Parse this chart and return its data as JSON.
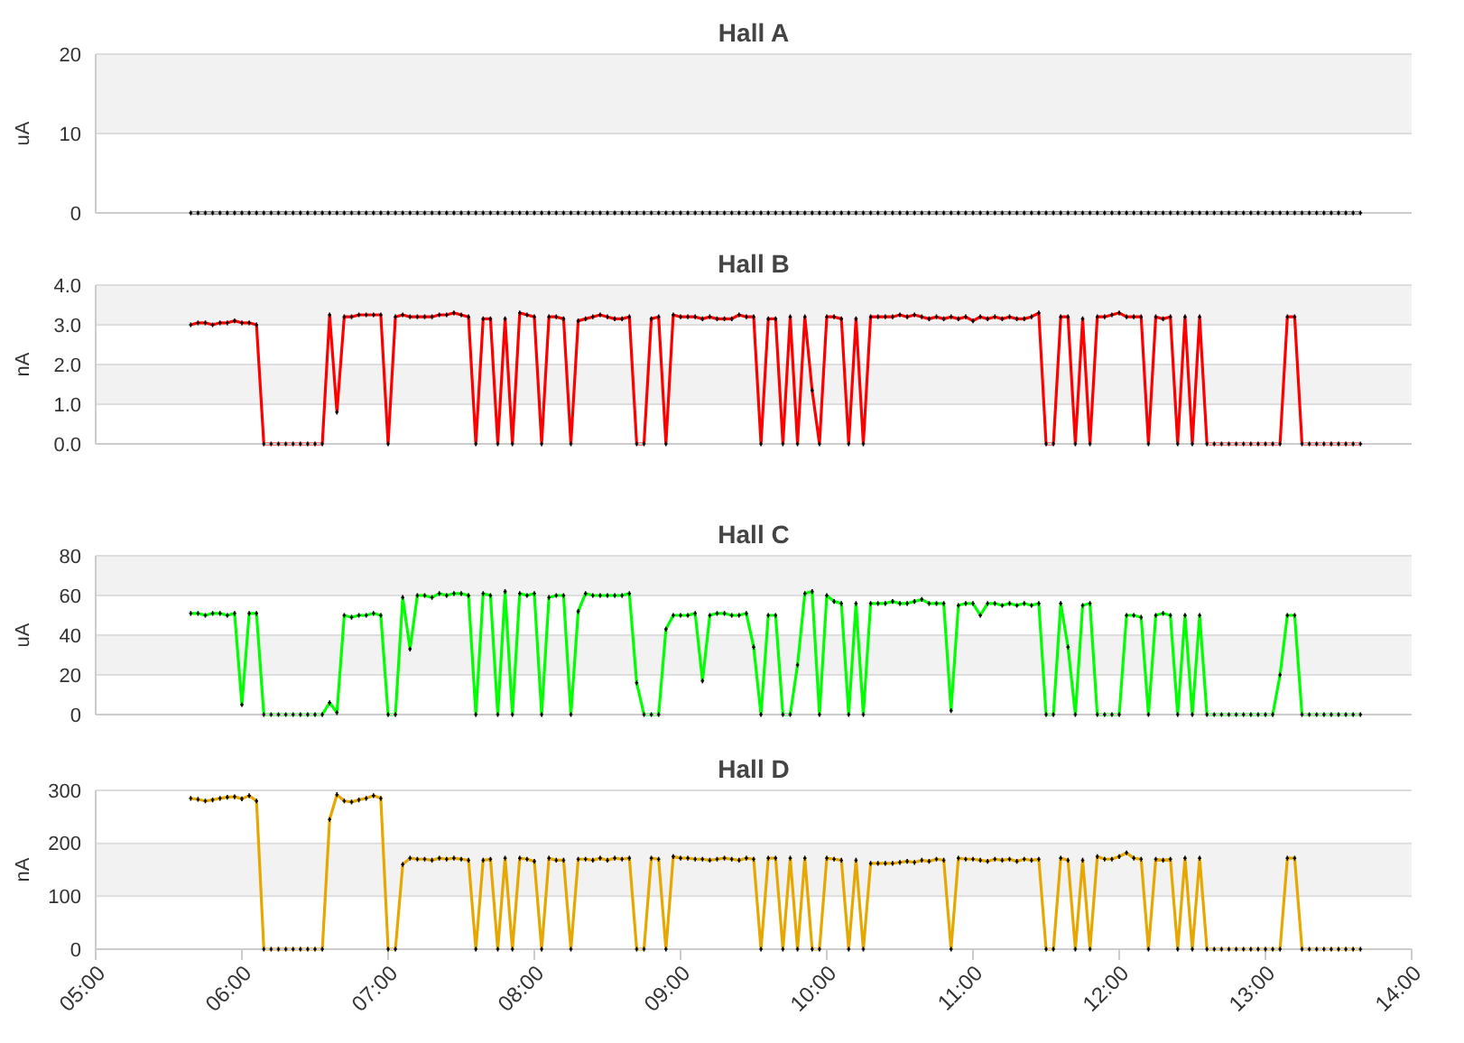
{
  "chart_data": [
    {
      "type": "line",
      "title": "Hall A",
      "ylabel": "uA",
      "xlim": [
        5,
        14
      ],
      "ylim": [
        0,
        20
      ],
      "yticks": [
        0,
        10,
        20
      ],
      "grid": "y",
      "marker": "cross",
      "tick_labels": "y",
      "x": [
        5.65,
        5.7,
        5.75,
        5.8,
        5.85,
        5.9,
        5.95,
        6,
        6.05,
        6.1,
        6.15,
        6.2,
        6.25,
        6.3,
        6.35,
        6.4,
        6.45,
        6.5,
        6.55,
        6.6,
        6.65,
        6.7,
        6.75,
        6.8,
        6.85,
        6.9,
        6.95,
        7,
        7.05,
        7.1,
        7.15,
        7.2,
        7.25,
        7.3,
        7.35,
        7.4,
        7.45,
        7.5,
        7.55,
        7.6,
        7.65,
        7.7,
        7.75,
        7.8,
        7.85,
        7.9,
        7.95,
        8,
        8.05,
        8.1,
        8.15,
        8.2,
        8.25,
        8.3,
        8.35,
        8.4,
        8.45,
        8.5,
        8.55,
        8.6,
        8.65,
        8.7,
        8.75,
        8.8,
        8.85,
        8.9,
        8.95,
        9,
        9.05,
        9.1,
        9.15,
        9.2,
        9.25,
        9.3,
        9.35,
        9.4,
        9.45,
        9.5,
        9.55,
        9.6,
        9.65,
        9.7,
        9.75,
        9.8,
        9.85,
        9.9,
        9.95,
        10,
        10.05,
        10.1,
        10.15,
        10.2,
        10.25,
        10.3,
        10.35,
        10.4,
        10.45,
        10.5,
        10.55,
        10.6,
        10.65,
        10.7,
        10.75,
        10.8,
        10.85,
        10.9,
        10.95,
        11,
        11.05,
        11.1,
        11.15,
        11.2,
        11.25,
        11.3,
        11.35,
        11.4,
        11.45,
        11.5,
        11.55,
        11.6,
        11.65,
        11.7,
        11.75,
        11.8,
        11.85,
        11.9,
        11.95,
        12,
        12.05,
        12.1,
        12.15,
        12.2,
        12.25,
        12.3,
        12.35,
        12.4,
        12.45,
        12.5,
        12.55,
        12.6,
        12.65,
        12.7,
        12.75,
        12.8,
        12.85,
        12.9,
        12.95,
        13,
        13.05,
        13.1,
        13.15,
        13.2,
        13.25,
        13.3,
        13.35,
        13.4,
        13.45,
        13.5,
        13.55,
        13.6,
        13.65
      ],
      "series": [
        {
          "color": "#000000",
          "values": [
            0,
            0,
            0,
            0,
            0,
            0,
            0,
            0,
            0,
            0,
            0,
            0,
            0,
            0,
            0,
            0,
            0,
            0,
            0,
            0,
            0,
            0,
            0,
            0,
            0,
            0,
            0,
            0,
            0,
            0,
            0,
            0,
            0,
            0,
            0,
            0,
            0,
            0,
            0,
            0,
            0,
            0,
            0,
            0,
            0,
            0,
            0,
            0,
            0,
            0,
            0,
            0,
            0,
            0,
            0,
            0,
            0,
            0,
            0,
            0,
            0,
            0,
            0,
            0,
            0,
            0,
            0,
            0,
            0,
            0,
            0,
            0,
            0,
            0,
            0,
            0,
            0,
            0,
            0,
            0,
            0,
            0,
            0,
            0,
            0,
            0,
            0,
            0,
            0,
            0,
            0,
            0,
            0,
            0,
            0,
            0,
            0,
            0,
            0,
            0,
            0,
            0,
            0,
            0,
            0,
            0,
            0,
            0,
            0,
            0,
            0,
            0,
            0,
            0,
            0,
            0,
            0,
            0,
            0,
            0,
            0,
            0,
            0,
            0,
            0,
            0,
            0,
            0,
            0,
            0,
            0,
            0,
            0,
            0,
            0,
            0,
            0,
            0,
            0,
            0,
            0,
            0,
            0,
            0,
            0,
            0,
            0,
            0,
            0,
            0,
            0,
            0,
            0,
            0,
            0,
            0,
            0,
            0,
            0,
            0,
            0
          ]
        }
      ]
    },
    {
      "type": "line",
      "title": "Hall B",
      "ylabel": "nA",
      "xlim": [
        5,
        14
      ],
      "ylim": [
        0,
        4
      ],
      "yticks": [
        {
          "value": 0,
          "label": "0.0"
        },
        {
          "value": 1,
          "label": "1.0"
        },
        {
          "value": 2,
          "label": "2.0"
        },
        {
          "value": 3,
          "label": "3.0"
        },
        {
          "value": 4,
          "label": "4.0"
        }
      ],
      "grid": "y",
      "marker": "cross",
      "tick_labels": "y",
      "x": [
        5.65,
        5.7,
        5.75,
        5.8,
        5.85,
        5.9,
        5.95,
        6,
        6.05,
        6.1,
        6.15,
        6.2,
        6.25,
        6.3,
        6.35,
        6.4,
        6.45,
        6.5,
        6.55,
        6.6,
        6.65,
        6.7,
        6.75,
        6.8,
        6.85,
        6.9,
        6.95,
        7,
        7.05,
        7.1,
        7.15,
        7.2,
        7.25,
        7.3,
        7.35,
        7.4,
        7.45,
        7.5,
        7.55,
        7.6,
        7.65,
        7.7,
        7.75,
        7.8,
        7.85,
        7.9,
        7.95,
        8,
        8.05,
        8.1,
        8.15,
        8.2,
        8.25,
        8.3,
        8.35,
        8.4,
        8.45,
        8.5,
        8.55,
        8.6,
        8.65,
        8.7,
        8.75,
        8.8,
        8.85,
        8.9,
        8.95,
        9,
        9.05,
        9.1,
        9.15,
        9.2,
        9.25,
        9.3,
        9.35,
        9.4,
        9.45,
        9.5,
        9.55,
        9.6,
        9.65,
        9.7,
        9.75,
        9.8,
        9.85,
        9.9,
        9.95,
        10,
        10.05,
        10.1,
        10.15,
        10.2,
        10.25,
        10.3,
        10.35,
        10.4,
        10.45,
        10.5,
        10.55,
        10.6,
        10.65,
        10.7,
        10.75,
        10.8,
        10.85,
        10.9,
        10.95,
        11,
        11.05,
        11.1,
        11.15,
        11.2,
        11.25,
        11.3,
        11.35,
        11.4,
        11.45,
        11.5,
        11.55,
        11.6,
        11.65,
        11.7,
        11.75,
        11.8,
        11.85,
        11.9,
        11.95,
        12,
        12.05,
        12.1,
        12.15,
        12.2,
        12.25,
        12.3,
        12.35,
        12.4,
        12.45,
        12.5,
        12.55,
        12.6,
        12.65,
        12.7,
        12.75,
        12.8,
        12.85,
        12.9,
        12.95,
        13,
        13.05,
        13.1,
        13.15,
        13.2,
        13.25,
        13.3,
        13.35,
        13.4,
        13.45,
        13.5,
        13.55,
        13.6,
        13.65
      ],
      "series": [
        {
          "color": "#ff0000",
          "values": [
            3.0,
            3.05,
            3.05,
            3.0,
            3.05,
            3.05,
            3.1,
            3.05,
            3.05,
            3.0,
            0,
            0,
            0,
            0,
            0,
            0,
            0,
            0,
            0,
            3.25,
            0.8,
            3.2,
            3.2,
            3.25,
            3.25,
            3.25,
            3.25,
            0,
            3.2,
            3.25,
            3.2,
            3.2,
            3.2,
            3.2,
            3.25,
            3.25,
            3.3,
            3.25,
            3.2,
            0,
            3.15,
            3.15,
            0,
            3.15,
            0,
            3.3,
            3.25,
            3.2,
            0,
            3.2,
            3.2,
            3.15,
            0,
            3.1,
            3.15,
            3.2,
            3.25,
            3.2,
            3.15,
            3.15,
            3.2,
            0,
            0,
            3.15,
            3.2,
            0,
            3.25,
            3.2,
            3.2,
            3.2,
            3.15,
            3.2,
            3.15,
            3.15,
            3.15,
            3.25,
            3.2,
            3.2,
            0,
            3.15,
            3.15,
            0,
            3.2,
            0,
            3.2,
            1.35,
            0,
            3.2,
            3.2,
            3.15,
            0,
            3.15,
            0,
            3.2,
            3.2,
            3.2,
            3.2,
            3.25,
            3.2,
            3.25,
            3.2,
            3.15,
            3.2,
            3.15,
            3.2,
            3.15,
            3.2,
            3.1,
            3.2,
            3.15,
            3.2,
            3.15,
            3.2,
            3.15,
            3.15,
            3.2,
            3.3,
            0,
            0,
            3.2,
            3.2,
            0,
            3.15,
            0,
            3.2,
            3.2,
            3.25,
            3.3,
            3.2,
            3.2,
            3.2,
            0,
            3.2,
            3.15,
            3.2,
            0,
            3.2,
            0,
            3.2,
            0,
            0,
            0,
            0,
            0,
            0,
            0,
            0,
            0,
            0,
            0,
            3.2,
            3.2,
            0,
            0,
            0,
            0,
            0,
            0,
            0,
            0,
            0
          ]
        }
      ]
    },
    {
      "type": "line",
      "title": "Hall C",
      "ylabel": "uA",
      "xlim": [
        5,
        14
      ],
      "ylim": [
        0,
        80
      ],
      "yticks": [
        0,
        20,
        40,
        60,
        80
      ],
      "grid": "y",
      "marker": "cross",
      "tick_labels": "y",
      "x": [
        5.65,
        5.7,
        5.75,
        5.8,
        5.85,
        5.9,
        5.95,
        6,
        6.05,
        6.1,
        6.15,
        6.2,
        6.25,
        6.3,
        6.35,
        6.4,
        6.45,
        6.5,
        6.55,
        6.6,
        6.65,
        6.7,
        6.75,
        6.8,
        6.85,
        6.9,
        6.95,
        7,
        7.05,
        7.1,
        7.15,
        7.2,
        7.25,
        7.3,
        7.35,
        7.4,
        7.45,
        7.5,
        7.55,
        7.6,
        7.65,
        7.7,
        7.75,
        7.8,
        7.85,
        7.9,
        7.95,
        8,
        8.05,
        8.1,
        8.15,
        8.2,
        8.25,
        8.3,
        8.35,
        8.4,
        8.45,
        8.5,
        8.55,
        8.6,
        8.65,
        8.7,
        8.75,
        8.8,
        8.85,
        8.9,
        8.95,
        9,
        9.05,
        9.1,
        9.15,
        9.2,
        9.25,
        9.3,
        9.35,
        9.4,
        9.45,
        9.5,
        9.55,
        9.6,
        9.65,
        9.7,
        9.75,
        9.8,
        9.85,
        9.9,
        9.95,
        10,
        10.05,
        10.1,
        10.15,
        10.2,
        10.25,
        10.3,
        10.35,
        10.4,
        10.45,
        10.5,
        10.55,
        10.6,
        10.65,
        10.7,
        10.75,
        10.8,
        10.85,
        10.9,
        10.95,
        11,
        11.05,
        11.1,
        11.15,
        11.2,
        11.25,
        11.3,
        11.35,
        11.4,
        11.45,
        11.5,
        11.55,
        11.6,
        11.65,
        11.7,
        11.75,
        11.8,
        11.85,
        11.9,
        11.95,
        12,
        12.05,
        12.1,
        12.15,
        12.2,
        12.25,
        12.3,
        12.35,
        12.4,
        12.45,
        12.5,
        12.55,
        12.6,
        12.65,
        12.7,
        12.75,
        12.8,
        12.85,
        12.9,
        12.95,
        13,
        13.05,
        13.1,
        13.15,
        13.2,
        13.25,
        13.3,
        13.35,
        13.4,
        13.45,
        13.5,
        13.55,
        13.6,
        13.65
      ],
      "series": [
        {
          "color": "#00ff00",
          "values": [
            51,
            51,
            50,
            51,
            51,
            50,
            51,
            5,
            51,
            51,
            0,
            0,
            0,
            0,
            0,
            0,
            0,
            0,
            0,
            6,
            1,
            50,
            49,
            50,
            50,
            51,
            50,
            0,
            0,
            59,
            33,
            60,
            60,
            59,
            61,
            60,
            61,
            61,
            60,
            0,
            61,
            60,
            0,
            62,
            0,
            61,
            60,
            61,
            0,
            59,
            60,
            60,
            0,
            52,
            61,
            60,
            60,
            60,
            60,
            60,
            61,
            16,
            0,
            0,
            0,
            43,
            50,
            50,
            50,
            51,
            17,
            50,
            51,
            51,
            50,
            50,
            51,
            34,
            0,
            50,
            50,
            0,
            0,
            25,
            61,
            62,
            0,
            60,
            57,
            56,
            0,
            56,
            0,
            56,
            56,
            56,
            57,
            56,
            56,
            57,
            58,
            56,
            56,
            56,
            2,
            55,
            56,
            56,
            50,
            56,
            56,
            55,
            56,
            55,
            56,
            55,
            56,
            0,
            0,
            56,
            34,
            0,
            55,
            56,
            0,
            0,
            0,
            0,
            50,
            50,
            49,
            0,
            50,
            51,
            50,
            0,
            50,
            0,
            50,
            0,
            0,
            0,
            0,
            0,
            0,
            0,
            0,
            0,
            0,
            20,
            50,
            50,
            0,
            0,
            0,
            0,
            0,
            0,
            0,
            0,
            0
          ]
        }
      ]
    },
    {
      "type": "line",
      "title": "Hall D",
      "ylabel": "nA",
      "xlim": [
        5,
        14
      ],
      "xticks": [
        {
          "value": 5,
          "label": "05:00"
        },
        {
          "value": 6,
          "label": "06:00"
        },
        {
          "value": 7,
          "label": "07:00"
        },
        {
          "value": 8,
          "label": "08:00"
        },
        {
          "value": 9,
          "label": "09:00"
        },
        {
          "value": 10,
          "label": "10:00"
        },
        {
          "value": 11,
          "label": "11:00"
        },
        {
          "value": 12,
          "label": "12:00"
        },
        {
          "value": 13,
          "label": "13:00"
        },
        {
          "value": 14,
          "label": "14:00"
        }
      ],
      "ylim": [
        0,
        300
      ],
      "yticks": [
        0,
        100,
        200,
        300
      ],
      "grid": "y",
      "marker": "cross",
      "x": [
        5.65,
        5.7,
        5.75,
        5.8,
        5.85,
        5.9,
        5.95,
        6,
        6.05,
        6.1,
        6.15,
        6.2,
        6.25,
        6.3,
        6.35,
        6.4,
        6.45,
        6.5,
        6.55,
        6.6,
        6.65,
        6.7,
        6.75,
        6.8,
        6.85,
        6.9,
        6.95,
        7,
        7.05,
        7.1,
        7.15,
        7.2,
        7.25,
        7.3,
        7.35,
        7.4,
        7.45,
        7.5,
        7.55,
        7.6,
        7.65,
        7.7,
        7.75,
        7.8,
        7.85,
        7.9,
        7.95,
        8,
        8.05,
        8.1,
        8.15,
        8.2,
        8.25,
        8.3,
        8.35,
        8.4,
        8.45,
        8.5,
        8.55,
        8.6,
        8.65,
        8.7,
        8.75,
        8.8,
        8.85,
        8.9,
        8.95,
        9,
        9.05,
        9.1,
        9.15,
        9.2,
        9.25,
        9.3,
        9.35,
        9.4,
        9.45,
        9.5,
        9.55,
        9.6,
        9.65,
        9.7,
        9.75,
        9.8,
        9.85,
        9.9,
        9.95,
        10,
        10.05,
        10.1,
        10.15,
        10.2,
        10.25,
        10.3,
        10.35,
        10.4,
        10.45,
        10.5,
        10.55,
        10.6,
        10.65,
        10.7,
        10.75,
        10.8,
        10.85,
        10.9,
        10.95,
        11,
        11.05,
        11.1,
        11.15,
        11.2,
        11.25,
        11.3,
        11.35,
        11.4,
        11.45,
        11.5,
        11.55,
        11.6,
        11.65,
        11.7,
        11.75,
        11.8,
        11.85,
        11.9,
        11.95,
        12,
        12.05,
        12.1,
        12.15,
        12.2,
        12.25,
        12.3,
        12.35,
        12.4,
        12.45,
        12.5,
        12.55,
        12.6,
        12.65,
        12.7,
        12.75,
        12.8,
        12.85,
        12.9,
        12.95,
        13,
        13.05,
        13.1,
        13.15,
        13.2,
        13.25,
        13.3,
        13.35,
        13.4,
        13.45,
        13.5,
        13.55,
        13.6,
        13.65
      ],
      "series": [
        {
          "color": "#e6a800",
          "values": [
            285,
            283,
            280,
            282,
            285,
            287,
            288,
            284,
            290,
            280,
            0,
            0,
            0,
            0,
            0,
            0,
            0,
            0,
            0,
            245,
            292,
            280,
            278,
            282,
            285,
            290,
            285,
            0,
            0,
            160,
            172,
            170,
            170,
            168,
            172,
            170,
            172,
            170,
            168,
            0,
            168,
            170,
            0,
            172,
            0,
            172,
            170,
            166,
            0,
            172,
            168,
            168,
            0,
            170,
            170,
            168,
            172,
            168,
            172,
            170,
            172,
            0,
            0,
            172,
            170,
            0,
            175,
            172,
            172,
            170,
            170,
            168,
            170,
            172,
            170,
            168,
            172,
            170,
            0,
            172,
            172,
            0,
            172,
            0,
            172,
            0,
            0,
            172,
            170,
            168,
            0,
            168,
            0,
            162,
            162,
            162,
            162,
            164,
            166,
            164,
            168,
            166,
            170,
            168,
            0,
            172,
            170,
            170,
            168,
            166,
            170,
            168,
            170,
            166,
            170,
            168,
            170,
            0,
            0,
            172,
            168,
            0,
            168,
            0,
            175,
            170,
            170,
            175,
            182,
            172,
            170,
            0,
            170,
            168,
            170,
            0,
            172,
            0,
            172,
            0,
            0,
            0,
            0,
            0,
            0,
            0,
            0,
            0,
            0,
            0,
            172,
            172,
            0,
            0,
            0,
            0,
            0,
            0,
            0,
            0,
            0
          ]
        }
      ]
    }
  ]
}
